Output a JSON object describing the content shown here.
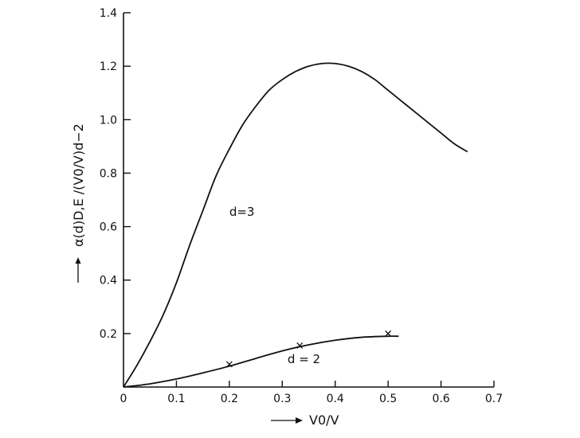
{
  "chart_data": {
    "type": "line",
    "xlabel": "V0/V",
    "ylabel": "α(d)D,E /(V0/V)d−2",
    "xlim": [
      0,
      0.7
    ],
    "ylim": [
      0,
      1.4
    ],
    "x_ticks": [
      {
        "value": 0,
        "label": "0"
      },
      {
        "value": 0.1,
        "label": "0.1"
      },
      {
        "value": 0.2,
        "label": "0.2"
      },
      {
        "value": 0.3,
        "label": "0.3"
      },
      {
        "value": 0.4,
        "label": "0.4"
      },
      {
        "value": 0.5,
        "label": "0.5"
      },
      {
        "value": 0.6,
        "label": "0.6"
      },
      {
        "value": 0.7,
        "label": "0.7"
      }
    ],
    "y_ticks": [
      {
        "value": 0.2,
        "label": "0.2"
      },
      {
        "value": 0.4,
        "label": "0.4"
      },
      {
        "value": 0.6,
        "label": "0.6"
      },
      {
        "value": 0.8,
        "label": "0.8"
      },
      {
        "value": 1.0,
        "label": "1.0"
      },
      {
        "value": 1.2,
        "label": "1.2"
      },
      {
        "value": 1.4,
        "label": "1.4"
      }
    ],
    "grid": false,
    "series": [
      {
        "name": "d=3",
        "x": [
          0,
          0.025,
          0.05,
          0.075,
          0.1,
          0.125,
          0.15,
          0.175,
          0.2,
          0.225,
          0.25,
          0.275,
          0.3,
          0.325,
          0.35,
          0.375,
          0.4,
          0.425,
          0.45,
          0.475,
          0.5,
          0.525,
          0.55,
          0.575,
          0.6,
          0.625,
          0.65
        ],
        "y": [
          0,
          0.08,
          0.17,
          0.27,
          0.39,
          0.53,
          0.66,
          0.79,
          0.89,
          0.98,
          1.05,
          1.11,
          1.15,
          1.18,
          1.2,
          1.21,
          1.21,
          1.2,
          1.18,
          1.15,
          1.11,
          1.07,
          1.03,
          0.99,
          0.95,
          0.91,
          0.88
        ]
      },
      {
        "name": "d = 2",
        "x": [
          0,
          0.05,
          0.1,
          0.15,
          0.2,
          0.25,
          0.3,
          0.35,
          0.4,
          0.45,
          0.5,
          0.52
        ],
        "y": [
          0,
          0.012,
          0.03,
          0.053,
          0.078,
          0.107,
          0.135,
          0.158,
          0.175,
          0.186,
          0.19,
          0.19
        ]
      }
    ],
    "markers": [
      {
        "series": "d = 2",
        "x": 0.2,
        "y": 0.085
      },
      {
        "series": "d = 2",
        "x": 0.333,
        "y": 0.155
      },
      {
        "series": "d = 2",
        "x": 0.5,
        "y": 0.2
      }
    ],
    "annotations": [
      {
        "text": "d=3",
        "x": 0.2,
        "y": 0.64
      },
      {
        "text": "d = 2",
        "x": 0.31,
        "y": 0.09
      }
    ]
  }
}
